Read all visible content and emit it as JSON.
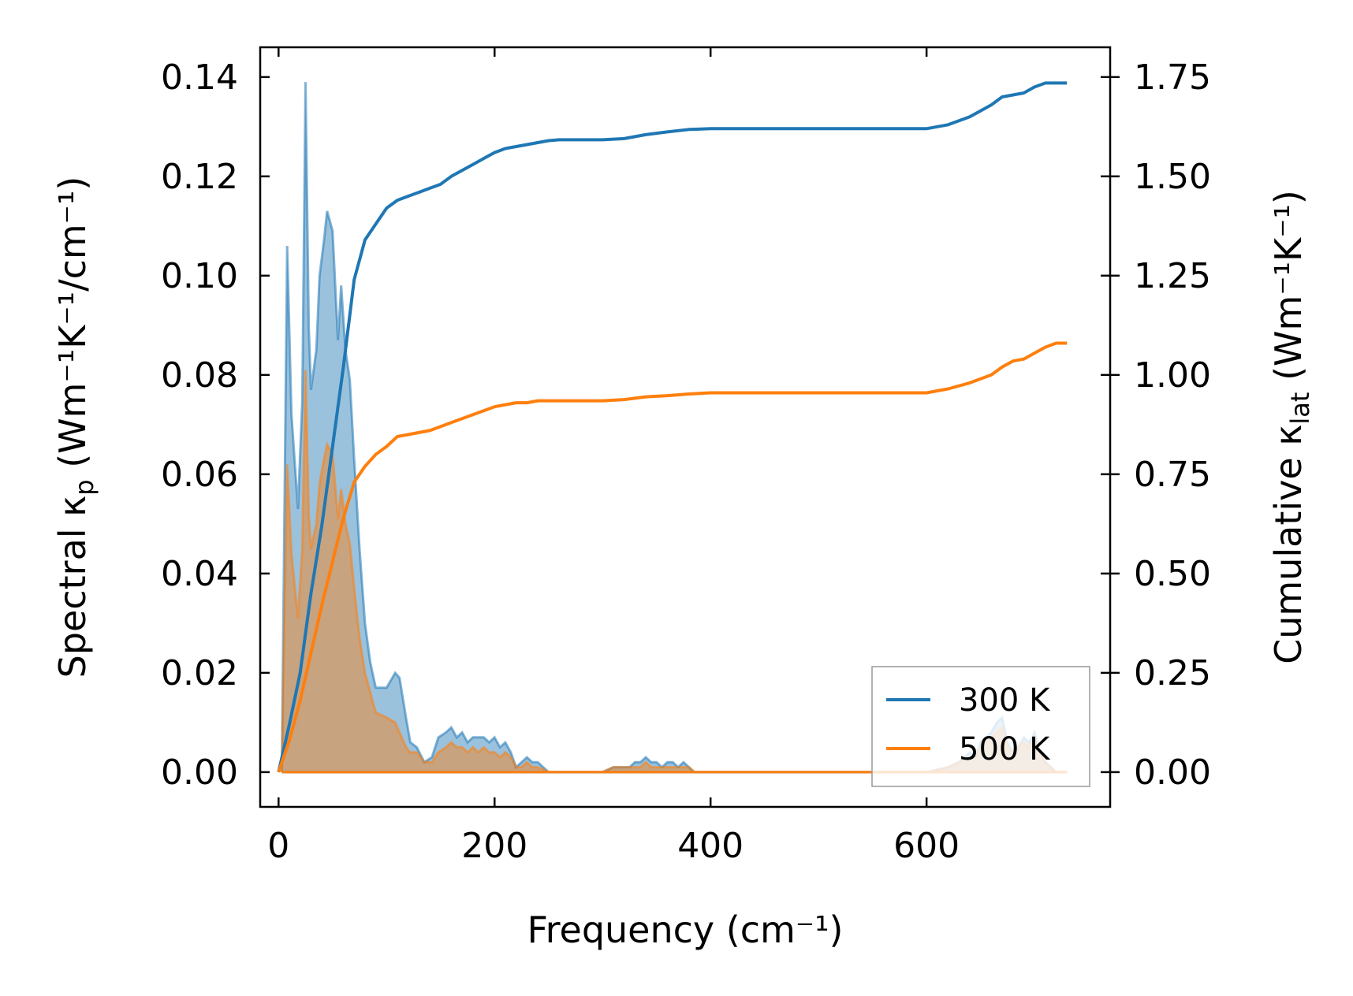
{
  "chart_data": {
    "type": "line",
    "xlabel": "Frequency (cm⁻¹)",
    "ylabel_left": "Spectral κp (Wm⁻¹K⁻¹/cm⁻¹)",
    "ylabel_left_parts": {
      "pre": "Spectral κ",
      "sub": "p",
      "post": " (Wm⁻¹K⁻¹/cm⁻¹)"
    },
    "ylabel_right": "Cumulative κlat (Wm⁻¹K⁻¹)",
    "ylabel_right_parts": {
      "pre": "Cumulative κ",
      "sub": "lat",
      "post": " (Wm⁻¹K⁻¹)"
    },
    "xlim": [
      -17,
      770
    ],
    "ylim_left": [
      -0.007,
      0.146
    ],
    "ylim_right": [
      -0.0875,
      1.825
    ],
    "xticks": [
      0,
      200,
      400,
      600
    ],
    "xtick_labels": [
      "0",
      "200",
      "400",
      "600"
    ],
    "yticks_left": [
      0.0,
      0.02,
      0.04,
      0.06,
      0.08,
      0.1,
      0.12,
      0.14
    ],
    "ytick_labels_left": [
      "0.00",
      "0.02",
      "0.04",
      "0.06",
      "0.08",
      "0.10",
      "0.12",
      "0.14"
    ],
    "yticks_right": [
      0.0,
      0.25,
      0.5,
      0.75,
      1.0,
      1.25,
      1.5,
      1.75
    ],
    "ytick_labels_right": [
      "0.00",
      "0.25",
      "0.50",
      "0.75",
      "1.00",
      "1.25",
      "1.50",
      "1.75"
    ],
    "legend": {
      "placement": "lower-right",
      "entries": [
        "300 K",
        "500 K"
      ]
    },
    "grid": false,
    "series": [
      {
        "name": "300 K",
        "color": "#1f77b4",
        "spectral": {
          "x": [
            3,
            8,
            12,
            18,
            22,
            25,
            28,
            30,
            35,
            38,
            42,
            45,
            50,
            55,
            58,
            62,
            66,
            70,
            75,
            80,
            85,
            90,
            100,
            108,
            112,
            118,
            122,
            128,
            135,
            142,
            148,
            155,
            160,
            165,
            170,
            175,
            180,
            185,
            190,
            195,
            200,
            205,
            210,
            215,
            220,
            225,
            230,
            235,
            240,
            250,
            260,
            270,
            300,
            310,
            318,
            325,
            330,
            335,
            340,
            345,
            350,
            355,
            360,
            365,
            370,
            375,
            380,
            385,
            390,
            400,
            500,
            600,
            620,
            630,
            640,
            645,
            650,
            655,
            660,
            665,
            670,
            675,
            680,
            685,
            690,
            695,
            700,
            705,
            710,
            715,
            720,
            730
          ],
          "y": [
            0.0,
            0.106,
            0.072,
            0.053,
            0.075,
            0.139,
            0.09,
            0.077,
            0.085,
            0.1,
            0.107,
            0.113,
            0.109,
            0.087,
            0.098,
            0.085,
            0.079,
            0.063,
            0.045,
            0.03,
            0.022,
            0.017,
            0.017,
            0.02,
            0.019,
            0.011,
            0.006,
            0.005,
            0.002,
            0.003,
            0.007,
            0.008,
            0.009,
            0.007,
            0.008,
            0.006,
            0.007,
            0.007,
            0.007,
            0.006,
            0.007,
            0.005,
            0.006,
            0.004,
            0.001,
            0.002,
            0.003,
            0.002,
            0.002,
            0.0,
            0.0,
            0.0,
            0.0,
            0.001,
            0.001,
            0.001,
            0.002,
            0.002,
            0.003,
            0.002,
            0.002,
            0.001,
            0.002,
            0.002,
            0.001,
            0.002,
            0.001,
            0.0,
            0.0,
            0.0,
            0.0,
            0.0,
            0.001,
            0.002,
            0.004,
            0.003,
            0.006,
            0.007,
            0.008,
            0.01,
            0.011,
            0.006,
            0.004,
            0.005,
            0.007,
            0.006,
            0.008,
            0.004,
            0.002,
            0.001,
            0.0,
            0.0
          ]
        },
        "cumulative": {
          "x": [
            0,
            10,
            20,
            30,
            40,
            50,
            60,
            70,
            80,
            90,
            100,
            110,
            120,
            130,
            140,
            150,
            160,
            170,
            180,
            190,
            200,
            210,
            220,
            230,
            240,
            250,
            260,
            280,
            300,
            320,
            340,
            360,
            380,
            400,
            450,
            500,
            550,
            600,
            620,
            640,
            660,
            670,
            680,
            690,
            700,
            710,
            720,
            730
          ],
          "y": [
            0.0,
            0.12,
            0.25,
            0.45,
            0.62,
            0.82,
            1.02,
            1.24,
            1.34,
            1.38,
            1.42,
            1.44,
            1.45,
            1.46,
            1.47,
            1.48,
            1.5,
            1.515,
            1.53,
            1.545,
            1.56,
            1.57,
            1.575,
            1.58,
            1.585,
            1.59,
            1.592,
            1.592,
            1.592,
            1.595,
            1.605,
            1.612,
            1.618,
            1.62,
            1.62,
            1.62,
            1.62,
            1.62,
            1.63,
            1.65,
            1.68,
            1.7,
            1.705,
            1.71,
            1.725,
            1.735,
            1.735,
            1.735
          ]
        }
      },
      {
        "name": "500 K",
        "color": "#ff7f0e",
        "spectral": {
          "x": [
            3,
            8,
            12,
            18,
            22,
            25,
            28,
            30,
            35,
            38,
            42,
            45,
            50,
            55,
            58,
            62,
            66,
            70,
            75,
            80,
            85,
            90,
            100,
            108,
            112,
            118,
            122,
            128,
            135,
            142,
            148,
            155,
            160,
            165,
            170,
            175,
            180,
            185,
            190,
            195,
            200,
            205,
            210,
            215,
            220,
            225,
            230,
            235,
            240,
            250,
            260,
            270,
            300,
            310,
            318,
            325,
            330,
            335,
            340,
            345,
            350,
            355,
            360,
            365,
            370,
            375,
            380,
            385,
            390,
            400,
            500,
            600,
            620,
            630,
            640,
            645,
            650,
            655,
            660,
            665,
            670,
            675,
            680,
            685,
            690,
            695,
            700,
            705,
            710,
            715,
            720,
            730
          ],
          "y": [
            0.0,
            0.062,
            0.044,
            0.031,
            0.045,
            0.081,
            0.052,
            0.045,
            0.05,
            0.058,
            0.063,
            0.066,
            0.064,
            0.051,
            0.057,
            0.05,
            0.046,
            0.037,
            0.027,
            0.02,
            0.016,
            0.012,
            0.011,
            0.01,
            0.008,
            0.005,
            0.004,
            0.004,
            0.002,
            0.002,
            0.004,
            0.005,
            0.006,
            0.005,
            0.005,
            0.004,
            0.005,
            0.004,
            0.005,
            0.004,
            0.004,
            0.003,
            0.004,
            0.003,
            0.001,
            0.001,
            0.002,
            0.001,
            0.001,
            0.0,
            0.0,
            0.0,
            0.0,
            0.001,
            0.001,
            0.001,
            0.001,
            0.001,
            0.002,
            0.001,
            0.001,
            0.001,
            0.001,
            0.001,
            0.001,
            0.001,
            0.001,
            0.0,
            0.0,
            0.0,
            0.0,
            0.0,
            0.001,
            0.002,
            0.003,
            0.003,
            0.005,
            0.006,
            0.007,
            0.008,
            0.009,
            0.005,
            0.004,
            0.005,
            0.006,
            0.005,
            0.007,
            0.004,
            0.002,
            0.001,
            0.0,
            0.0
          ]
        },
        "cumulative": {
          "x": [
            0,
            10,
            20,
            30,
            40,
            50,
            60,
            70,
            80,
            90,
            100,
            110,
            120,
            130,
            140,
            150,
            160,
            170,
            180,
            190,
            200,
            210,
            220,
            230,
            240,
            250,
            260,
            280,
            300,
            320,
            340,
            360,
            380,
            400,
            450,
            500,
            550,
            600,
            620,
            640,
            660,
            670,
            680,
            690,
            700,
            710,
            720,
            730
          ],
          "y": [
            0.0,
            0.08,
            0.18,
            0.3,
            0.42,
            0.53,
            0.64,
            0.73,
            0.77,
            0.8,
            0.82,
            0.845,
            0.85,
            0.855,
            0.86,
            0.87,
            0.88,
            0.89,
            0.9,
            0.91,
            0.92,
            0.925,
            0.93,
            0.93,
            0.935,
            0.935,
            0.935,
            0.935,
            0.935,
            0.938,
            0.945,
            0.948,
            0.952,
            0.955,
            0.955,
            0.955,
            0.955,
            0.955,
            0.965,
            0.98,
            1.0,
            1.02,
            1.035,
            1.04,
            1.055,
            1.07,
            1.08,
            1.08
          ]
        }
      }
    ]
  }
}
